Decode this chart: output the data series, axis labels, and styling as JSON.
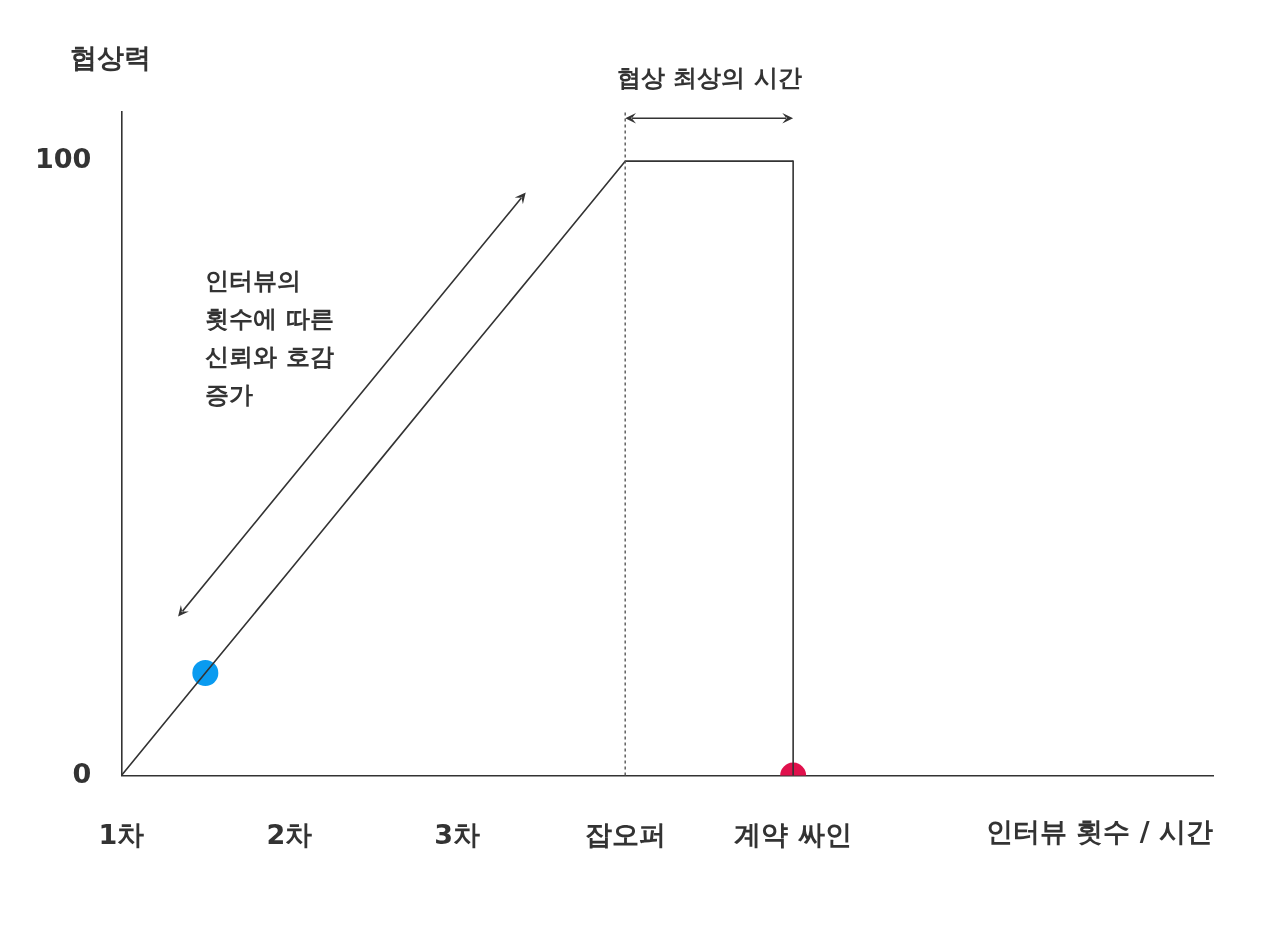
{
  "chart_data": {
    "type": "line",
    "xlabel": "인터뷰 횟수 / 시간",
    "ylabel": "협상력",
    "categories": [
      "1차",
      null,
      "2차",
      null,
      "3차",
      null,
      "잡오퍼",
      null,
      "계약 싸인",
      null,
      null,
      null,
      null,
      null
    ],
    "ylim": [
      0,
      108
    ],
    "yticks": [
      0,
      100
    ],
    "grid": false,
    "legend": false,
    "series": [
      {
        "color": "#333333",
        "values": [
          0,
          16.7,
          33.3,
          50,
          66.7,
          83.3,
          100,
          100,
          100,
          null,
          null,
          null,
          null,
          null
        ]
      },
      {
        "type": "line",
        "color": "#333333",
        "x": [
          "계약 싸인",
          "계약 싸인"
        ],
        "values": [
          100,
          0
        ]
      },
      {
        "type": "scatter",
        "color": "#0a9bf0",
        "values": [
          null,
          16.7,
          null,
          null,
          null,
          null,
          null,
          null,
          null,
          null,
          null,
          null,
          null,
          null
        ]
      },
      {
        "type": "scatter",
        "color": "#e0104c",
        "x": [
          "계약 싸인"
        ],
        "values": [
          0
        ]
      }
    ],
    "ref_lines": [
      {
        "axis": "x",
        "value": "잡오퍼",
        "color": "#555555",
        "line_style": "dotted"
      }
    ],
    "annotations": [
      "협상 최상의 시간",
      "인터뷰의\n횟수에 따른\n신뢰와 호감\n증가"
    ]
  }
}
